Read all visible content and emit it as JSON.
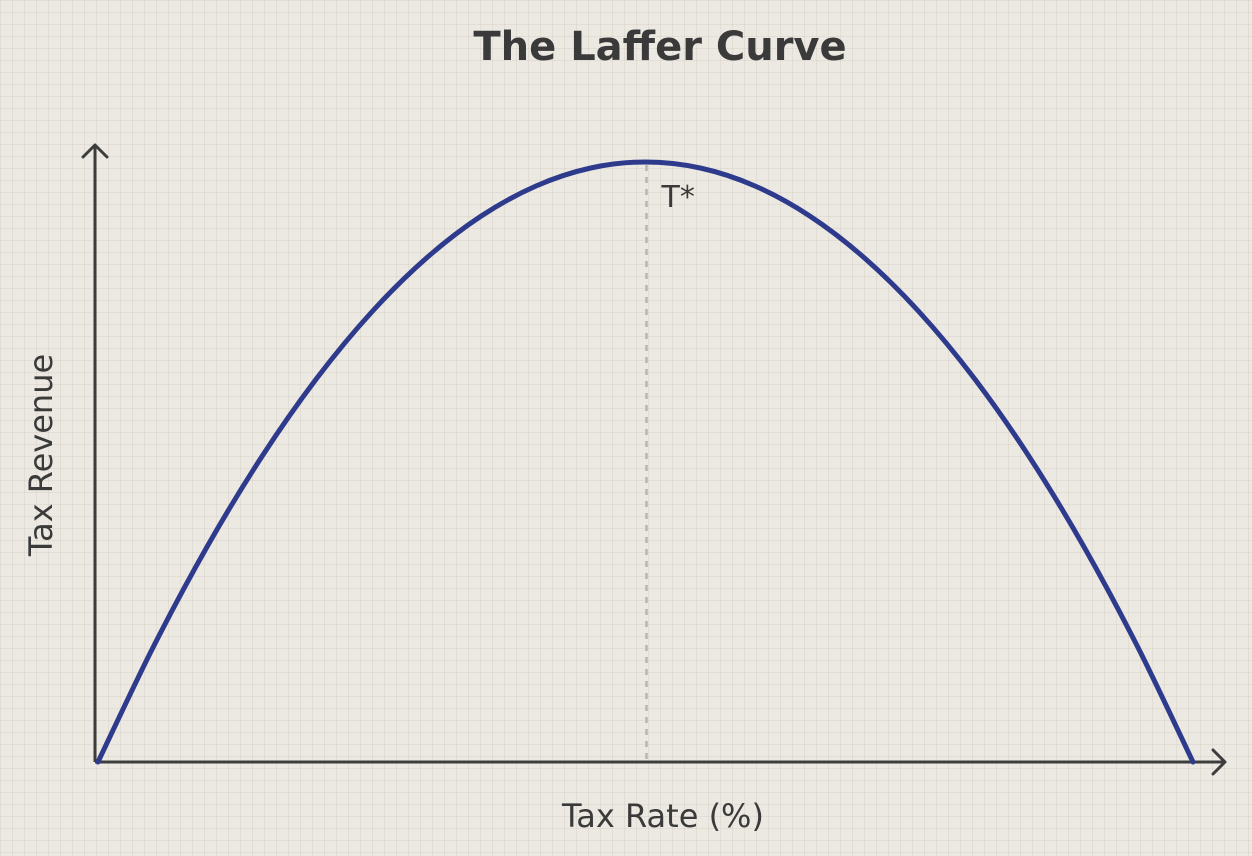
{
  "chart_data": {
    "type": "line",
    "title": "The Laffer Curve",
    "xlabel": "Tax Rate (%)",
    "ylabel": "Tax Revenue",
    "grid": true,
    "axis_ticks": false,
    "xlim": [
      0,
      100
    ],
    "ylim": [
      0,
      110
    ],
    "series": [
      {
        "x": [
          0,
          5,
          10,
          15,
          20,
          25,
          30,
          35,
          40,
          45,
          50,
          55,
          60,
          65,
          70,
          75,
          80,
          85,
          90,
          95,
          100
        ],
        "values": [
          0,
          19,
          36,
          51,
          64,
          75,
          84,
          91,
          96,
          99,
          100,
          99,
          96,
          91,
          84,
          75,
          64,
          51,
          36,
          19,
          0
        ],
        "color": "#2e3a8c"
      }
    ],
    "annotations": [
      {
        "label": "T*",
        "x": 50,
        "y": 100,
        "style": "dashed-vertical-line"
      }
    ]
  }
}
